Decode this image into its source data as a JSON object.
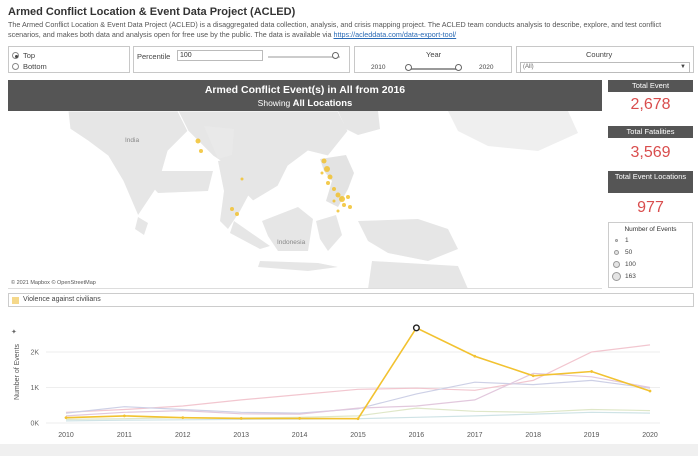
{
  "header": {
    "title": "Armed Conflict Location & Event Data Project (ACLED)",
    "desc_before": "The Armed Conflict Location & Event Data Project (ACLED) is a disaggregated data collection, analysis, and crisis mapping project. The ACLED team conducts analysis to describe, explore, and test conflict scenarios, and makes both data and analysis open for free use by the public. The data is available via",
    "desc_link": "https://acleddata.com/data-export-tool/"
  },
  "filters": {
    "top_label": "Top",
    "bottom_label": "Bottom",
    "top_selected": true,
    "percentile_label": "Percentile",
    "percentile_value": "100",
    "year_label": "Year",
    "year_min": "2010",
    "year_max": "2020",
    "country_label": "Country",
    "country_value": "(All)"
  },
  "map": {
    "title": "Armed Conflict Event(s) in All from 2016",
    "subtitle_prefix": "Showing",
    "subtitle_value": "All Locations",
    "credit": "© 2021 Mapbox © OpenStreetMap",
    "labels": {
      "india": "India",
      "indonesia": "Indonesia"
    }
  },
  "kpis": {
    "total_event_label": "Total Event",
    "total_event_value": "2,678",
    "total_fatalities_label": "Total Fatalities",
    "total_fatalities_value": "3,569",
    "total_locations_label": "Total Event Locations",
    "total_locations_value": "977"
  },
  "size_legend": {
    "title": "Number of Events",
    "items": [
      "1",
      "50",
      "100",
      "163"
    ]
  },
  "colors": {
    "highlight": "#f2c230",
    "kpi_value": "#d94d4d",
    "panel_dark": "#555555"
  },
  "event_type_legend": {
    "label": "Violence against civilians"
  },
  "chart_data": {
    "type": "line",
    "ylabel": "Number of Events",
    "x": [
      2010,
      2011,
      2012,
      2013,
      2014,
      2015,
      2016,
      2017,
      2018,
      2019,
      2020
    ],
    "yticks": [
      "0K",
      "1K",
      "2K"
    ],
    "ylim": [
      0,
      2900
    ],
    "highlighted_series": {
      "values": [
        150,
        200,
        150,
        130,
        130,
        120,
        2678,
        1880,
        1330,
        1450,
        900
      ]
    },
    "background_series": [
      {
        "values": [
          300,
          380,
          480,
          650,
          800,
          950,
          980,
          920,
          1200,
          2000,
          2200
        ],
        "color": "#f2c6cf"
      },
      {
        "values": [
          280,
          460,
          380,
          300,
          280,
          400,
          820,
          1150,
          1080,
          1200,
          980
        ],
        "color": "#cdd0e6"
      },
      {
        "values": [
          200,
          300,
          350,
          260,
          250,
          420,
          480,
          650,
          1400,
          1300,
          1000
        ],
        "color": "#e2c8dd"
      },
      {
        "values": [
          100,
          120,
          150,
          140,
          160,
          200,
          420,
          330,
          300,
          380,
          350
        ],
        "color": "#dfe7c8"
      },
      {
        "values": [
          60,
          80,
          90,
          100,
          110,
          120,
          160,
          200,
          250,
          300,
          280
        ],
        "color": "#cfe3e6"
      }
    ]
  }
}
